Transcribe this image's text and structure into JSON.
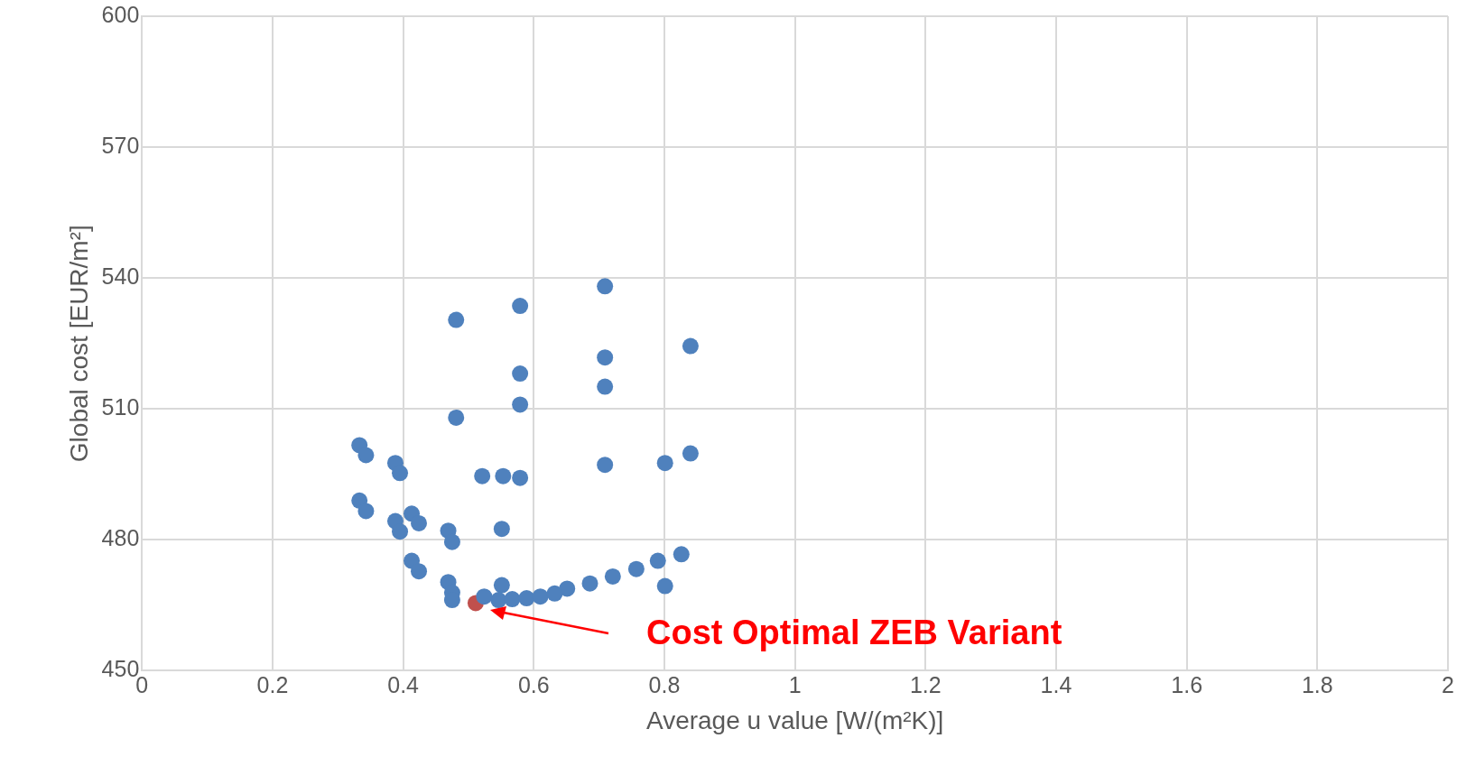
{
  "chart_data": {
    "type": "scatter",
    "xlabel": "Average u value [W/(m²K)]",
    "ylabel": "Global cost [EUR/m²]",
    "xlim": [
      0,
      2
    ],
    "xticks": [
      0,
      0.2,
      0.4,
      0.6,
      0.8,
      1,
      1.2,
      1.4,
      1.6,
      1.8,
      2
    ],
    "ylim": [
      450,
      600
    ],
    "yticks": [
      450,
      480,
      510,
      540,
      570,
      600
    ],
    "grid": true,
    "marker": "circle",
    "series": [
      {
        "color": "#4f81bd",
        "x": [
          0.333,
          0.343,
          0.333,
          0.343,
          0.388,
          0.395,
          0.388,
          0.395,
          0.413,
          0.424,
          0.469,
          0.475,
          0.413,
          0.424,
          0.469,
          0.475,
          0.475,
          0.481,
          0.481,
          0.521,
          0.553,
          0.579,
          0.551,
          0.579,
          0.579,
          0.579,
          0.709,
          0.709,
          0.709,
          0.709,
          0.84,
          0.84,
          0.801,
          0.551,
          0.801,
          0.79,
          0.826,
          0.757,
          0.721,
          0.686,
          0.651,
          0.524,
          0.546,
          0.567,
          0.589,
          0.61,
          0.632
        ],
        "values": [
          501.7,
          499.4,
          489,
          486.6,
          497.6,
          495.3,
          484.3,
          481.9,
          486,
          483.8,
          482.1,
          479.5,
          475.2,
          472.8,
          470.3,
          467.9,
          466.2,
          530.4,
          508,
          494.6,
          494.6,
          494.2,
          482.5,
          533.6,
          518.1,
          511,
          538.1,
          521.8,
          515.1,
          497.2,
          524.4,
          499.8,
          497.6,
          469.6,
          469.4,
          475.2,
          476.7,
          473.3,
          471.6,
          470,
          468.8,
          467,
          466.2,
          466.4,
          466.6,
          467,
          467.7
        ]
      },
      {
        "color": "#c0504d",
        "x": [
          0.511
        ],
        "values": [
          465.5
        ]
      }
    ],
    "annotations": [
      "Cost Optimal ZEB Variant"
    ]
  }
}
